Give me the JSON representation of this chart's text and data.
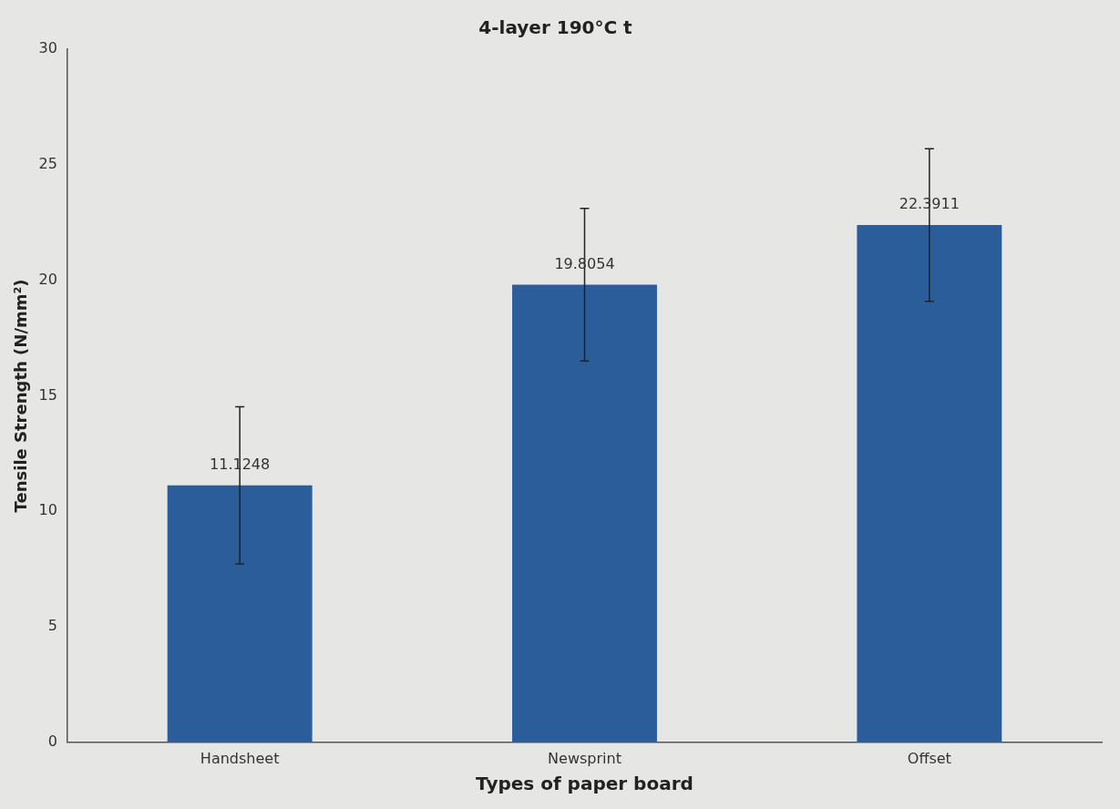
{
  "chart_data": {
    "type": "bar",
    "title": "4-layer 190°C t",
    "xlabel": "Types of paper board",
    "ylabel": "Tensile Strength (N/mm²)",
    "categories": [
      "Handsheet",
      "Newsprint",
      "Offset"
    ],
    "values": [
      11.1248,
      19.8054,
      22.3911
    ],
    "errors": [
      3.4,
      3.3,
      3.3
    ],
    "color": "#2c5d9b",
    "ylim": [
      0,
      30
    ],
    "yticks": [
      0,
      5,
      10,
      15,
      20,
      25,
      30
    ],
    "grid": false,
    "legend": false,
    "data_labels": true
  }
}
